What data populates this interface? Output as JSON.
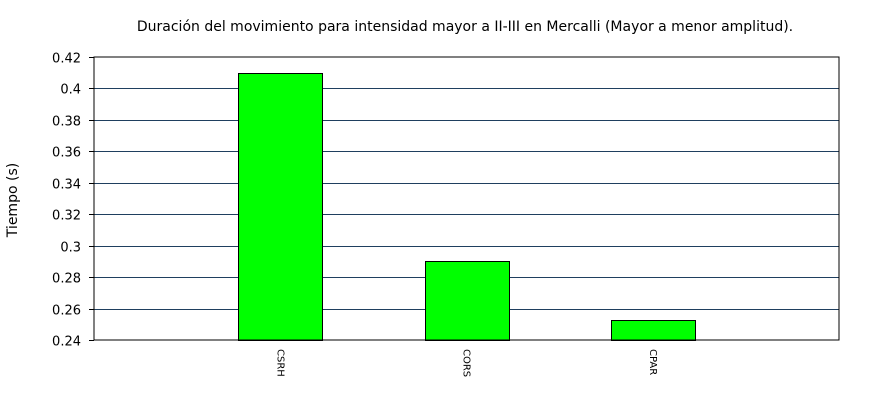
{
  "chart_data": {
    "type": "bar",
    "title": "Duración del movimiento para intensidad mayor a II-III en Mercalli (Mayor a menor amplitud).",
    "xlabel": "",
    "ylabel": "Tiempo (s)",
    "categories": [
      "CSRH",
      "CORS",
      "CPAR"
    ],
    "values": [
      0.41,
      0.29,
      0.253
    ],
    "ylim": [
      0.24,
      0.42
    ],
    "yticks": [
      "0.24",
      "0.26",
      "0.28",
      "0.3",
      "0.32",
      "0.34",
      "0.36",
      "0.38",
      "0.4",
      "0.42"
    ],
    "grid": "horizontal",
    "bar_color": "#00ff00",
    "grid_color": "#1f3f5f"
  }
}
